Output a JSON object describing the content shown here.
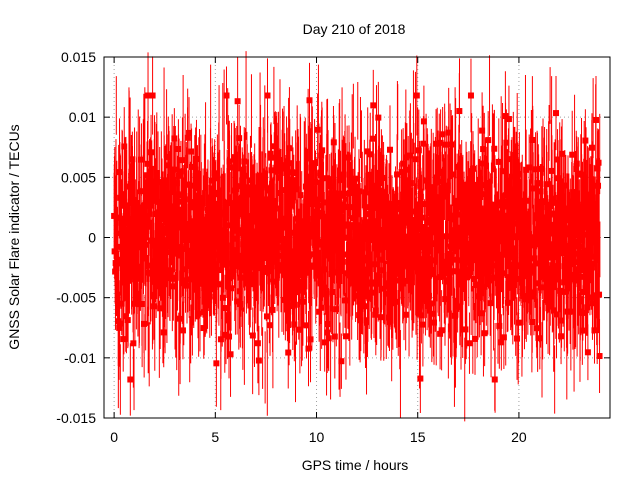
{
  "chart_data": {
    "type": "scatter",
    "title": "Day 210 of 2018",
    "xlabel": "GPS time / hours",
    "ylabel": "GNSS Solar Flare indicator / TECUs",
    "xlim": [
      -0.5,
      24.5
    ],
    "ylim": [
      -0.015,
      0.015
    ],
    "x_ticks": [
      0,
      5,
      10,
      15,
      20
    ],
    "y_ticks": [
      -0.015,
      -0.01,
      -0.005,
      0,
      0.005,
      0.01,
      0.015
    ],
    "x_tick_labels": [
      "0",
      "5",
      "10",
      "15",
      "20"
    ],
    "y_tick_labels": [
      "-0.015",
      "-0.01",
      "-0.005",
      "0",
      "0.005",
      "0.01",
      "0.015"
    ],
    "grid": true,
    "series": [
      {
        "color": "#ff0000",
        "marker": "square",
        "error_bars": true,
        "x_start": 0.0,
        "x_end": 24.0,
        "n_points": 2880,
        "value_sd": 0.0042,
        "error_half_width": 0.003,
        "note_values": "dense noise centred on 0, roughly -0.012 to 0.012"
      }
    ]
  }
}
